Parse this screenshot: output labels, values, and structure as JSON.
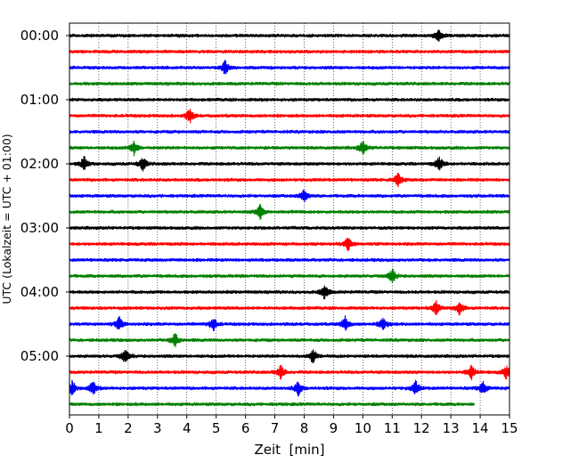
{
  "chart_data": {
    "type": "line",
    "title": "",
    "xlabel": "Zeit  [min]",
    "ylabel": "UTC (Lokalzeit = UTC + 01:00)",
    "xlim": [
      0,
      15
    ],
    "x_ticks": [
      "0",
      "1",
      "2",
      "3",
      "4",
      "5",
      "6",
      "7",
      "8",
      "9",
      "10",
      "11",
      "12",
      "13",
      "14",
      "15"
    ],
    "y_ticks": [
      "00:00",
      "01:00",
      "02:00",
      "03:00",
      "04:00",
      "05:00"
    ],
    "grid": "vertical dotted",
    "trace_interval_minutes": 15,
    "colors": [
      "#000000",
      "#ff0000",
      "#0000ff",
      "#008000"
    ],
    "traces": [
      {
        "start": "00:00",
        "color": "#000000",
        "events_min": [
          12.6
        ]
      },
      {
        "start": "00:15",
        "color": "#ff0000",
        "events_min": []
      },
      {
        "start": "00:30",
        "color": "#0000ff",
        "events_min": [
          5.3
        ]
      },
      {
        "start": "00:45",
        "color": "#008000",
        "events_min": []
      },
      {
        "start": "01:00",
        "color": "#000000",
        "events_min": []
      },
      {
        "start": "01:15",
        "color": "#ff0000",
        "events_min": [
          4.1
        ]
      },
      {
        "start": "01:30",
        "color": "#0000ff",
        "events_min": []
      },
      {
        "start": "01:45",
        "color": "#008000",
        "events_min": [
          2.2,
          10.0
        ]
      },
      {
        "start": "02:00",
        "color": "#000000",
        "events_min": [
          0.5,
          2.5,
          12.6
        ]
      },
      {
        "start": "02:15",
        "color": "#ff0000",
        "events_min": [
          11.2
        ]
      },
      {
        "start": "02:30",
        "color": "#0000ff",
        "events_min": [
          8.0
        ]
      },
      {
        "start": "02:45",
        "color": "#008000",
        "events_min": [
          6.5
        ]
      },
      {
        "start": "03:00",
        "color": "#000000",
        "events_min": []
      },
      {
        "start": "03:15",
        "color": "#ff0000",
        "events_min": [
          9.5
        ]
      },
      {
        "start": "03:30",
        "color": "#0000ff",
        "events_min": []
      },
      {
        "start": "03:45",
        "color": "#008000",
        "events_min": [
          11.0
        ]
      },
      {
        "start": "04:00",
        "color": "#000000",
        "events_min": [
          8.7
        ]
      },
      {
        "start": "04:15",
        "color": "#ff0000",
        "events_min": [
          12.5,
          13.3
        ]
      },
      {
        "start": "04:30",
        "color": "#0000ff",
        "events_min": [
          1.7,
          4.9,
          9.4,
          10.7
        ]
      },
      {
        "start": "04:45",
        "color": "#008000",
        "events_min": [
          3.6
        ]
      },
      {
        "start": "05:00",
        "color": "#000000",
        "events_min": [
          1.9,
          8.3
        ]
      },
      {
        "start": "05:15",
        "color": "#ff0000",
        "events_min": [
          7.2,
          13.7,
          14.9
        ]
      },
      {
        "start": "05:30",
        "color": "#0000ff",
        "events_min": [
          0.1,
          0.8,
          7.8,
          11.8,
          14.1
        ]
      },
      {
        "start": "05:45",
        "color": "#008000",
        "events_min": [],
        "end_min": 13.8
      }
    ]
  }
}
